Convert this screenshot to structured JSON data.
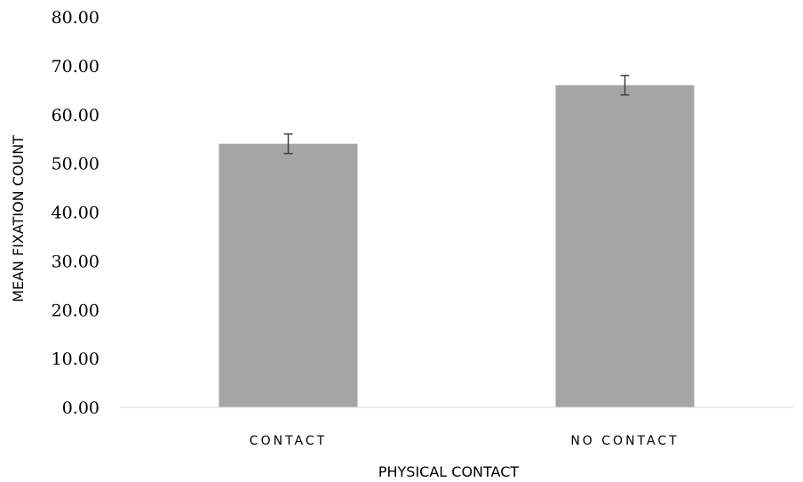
{
  "chart_data": {
    "type": "bar",
    "title": "",
    "xlabel": "PHYSICAL CONTACT",
    "ylabel": "MEAN FIXATION COUNT",
    "categories": [
      "CONTACT",
      "NO CONTACT"
    ],
    "values": [
      54,
      66
    ],
    "errors": [
      2,
      2
    ],
    "ylim": [
      0,
      80
    ],
    "yticks": [
      "0.00",
      "10.00",
      "20.00",
      "30.00",
      "40.00",
      "50.00",
      "60.00",
      "70.00",
      "80.00"
    ],
    "grid": false,
    "legend": "none",
    "bar_color": "#a5a5a5",
    "error_bar_color": "#404040"
  }
}
